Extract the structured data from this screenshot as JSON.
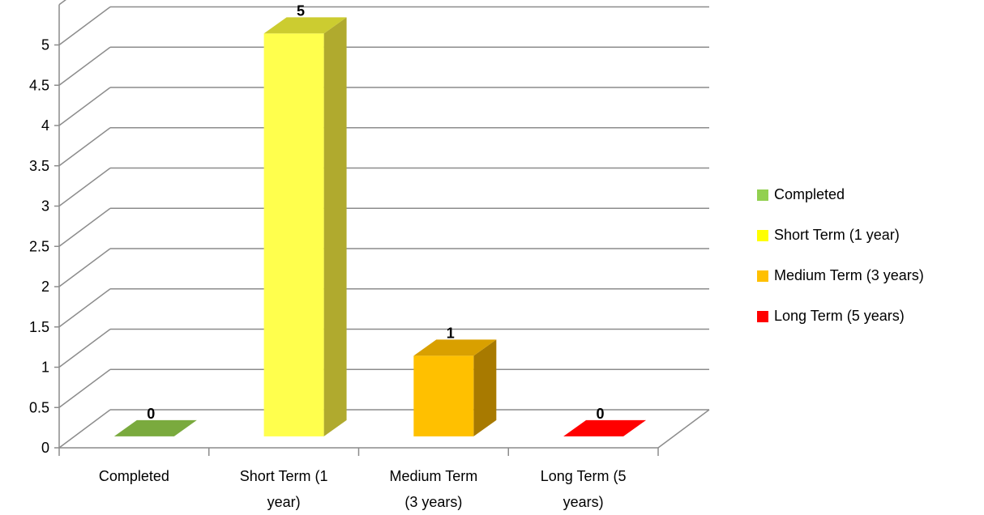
{
  "chart_data": {
    "type": "bar",
    "style": "3d-column",
    "categories": [
      "Completed",
      "Short Term (1 year)",
      "Medium Term (3 years)",
      "Long Term (5 years)"
    ],
    "category_axis_labels": [
      [
        "Completed"
      ],
      [
        "Short Term (1",
        "year)"
      ],
      [
        "Medium Term",
        "(3 years)"
      ],
      [
        "Long Term (5",
        "years)"
      ]
    ],
    "values": [
      0,
      5,
      1,
      0
    ],
    "data_labels": [
      "0",
      "5",
      "1",
      "0"
    ],
    "colors": [
      "#7aaa3e",
      "#ffff4d",
      "#ffc000",
      "#ff0000"
    ],
    "side_colors": [
      "#5d8a2c",
      "#b0aa2e",
      "#a87a00",
      "#b00000"
    ],
    "top_colors": [
      "#6a9a34",
      "#cccc30",
      "#d9a000",
      "#d40000"
    ],
    "y_ticks": [
      "0",
      "0.5",
      "1",
      "1.5",
      "2",
      "2.5",
      "3",
      "3.5",
      "4",
      "4.5",
      "5"
    ],
    "ylim": [
      0,
      5.5
    ],
    "grid": true,
    "legend": {
      "position": "right",
      "items": [
        {
          "label": "Completed",
          "color": "#92d050"
        },
        {
          "label": "Short Term (1 year)",
          "color": "#ffff00"
        },
        {
          "label": "Medium Term (3 years)",
          "color": "#ffc000"
        },
        {
          "label": "Long Term (5 years)",
          "color": "#ff0000"
        }
      ]
    }
  }
}
